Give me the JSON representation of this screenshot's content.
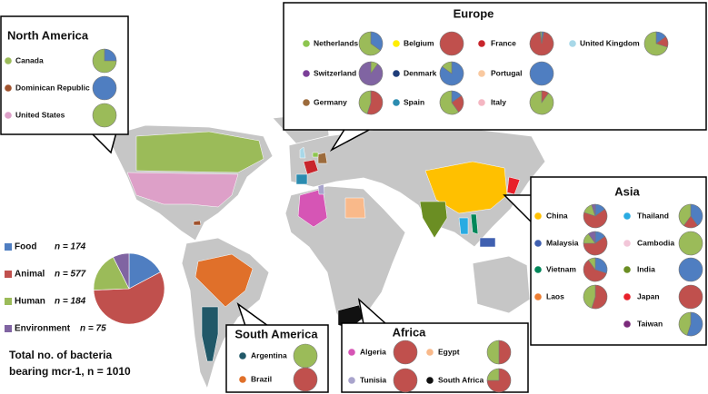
{
  "chart_data": {
    "type": "pie",
    "categories": [
      "Food",
      "Animal",
      "Human",
      "Environment"
    ],
    "values": [
      174,
      577,
      184,
      75
    ],
    "value_labels": [
      "n = 174",
      "n = 577",
      "n = 184",
      "n = 75"
    ],
    "colors": [
      "#4f7ec1",
      "#c0504d",
      "#9bbb59",
      "#8064a2"
    ],
    "total_line1": "Total no. of bacteria",
    "total_line2": "bearing mcr-1, n = 1010"
  },
  "regions": [
    {
      "name": "North America",
      "countries": [
        {
          "name": "Canada",
          "color": "#9bbb59",
          "shares": [
            25,
            0,
            75,
            0
          ]
        },
        {
          "name": "Dominican Republic",
          "color": "#a0522d",
          "shares": [
            100,
            0,
            0,
            0
          ]
        },
        {
          "name": "United States",
          "color": "#dda0c8",
          "shares": [
            0,
            0,
            100,
            0
          ]
        }
      ]
    },
    {
      "name": "Europe",
      "countries": [
        {
          "name": "Netherlands",
          "color": "#8dc54f",
          "shares": [
            35,
            0,
            65,
            0
          ]
        },
        {
          "name": "Belgium",
          "color": "#ffee00",
          "shares": [
            0,
            100,
            0,
            0
          ]
        },
        {
          "name": "France",
          "color": "#c8252c",
          "shares": [
            3,
            95,
            2,
            0
          ]
        },
        {
          "name": "United Kingdom",
          "color": "#a8d8e8",
          "shares": [
            15,
            15,
            70,
            0
          ]
        },
        {
          "name": "Switzerland",
          "color": "#7b3f98",
          "shares": [
            0,
            0,
            10,
            90
          ]
        },
        {
          "name": "Denmark",
          "color": "#1f3d7a",
          "shares": [
            85,
            0,
            15,
            0
          ]
        },
        {
          "name": "Portugal",
          "color": "#f9c9a0",
          "shares": [
            100,
            0,
            0,
            0
          ]
        },
        {
          "name": "Germany",
          "color": "#9c6b3c",
          "shares": [
            0,
            55,
            45,
            0
          ]
        },
        {
          "name": "Spain",
          "color": "#2b8cb0",
          "shares": [
            15,
            25,
            60,
            0
          ]
        },
        {
          "name": "Italy",
          "color": "#f4b6c2",
          "shares": [
            0,
            10,
            90,
            0
          ]
        }
      ]
    },
    {
      "name": "Asia",
      "countries": [
        {
          "name": "China",
          "color": "#ffc000",
          "shares": [
            15,
            65,
            15,
            5
          ]
        },
        {
          "name": "Thailand",
          "color": "#29abe2",
          "shares": [
            40,
            20,
            40,
            0
          ]
        },
        {
          "name": "Malaysia",
          "color": "#4060b0",
          "shares": [
            15,
            60,
            15,
            10
          ]
        },
        {
          "name": "Cambodia",
          "color": "#f2c6d8",
          "shares": [
            0,
            0,
            100,
            0
          ]
        },
        {
          "name": "Vietnam",
          "color": "#00875a",
          "shares": [
            30,
            60,
            10,
            0
          ]
        },
        {
          "name": "India",
          "color": "#6b8e23",
          "shares": [
            100,
            0,
            0,
            0
          ]
        },
        {
          "name": "Laos",
          "color": "#ed7d31",
          "shares": [
            0,
            55,
            45,
            0
          ]
        },
        {
          "name": "Japan",
          "color": "#e8202a",
          "shares": [
            0,
            100,
            0,
            0
          ]
        },
        {
          "name": "Taiwan",
          "color": "#7a2a7a",
          "shares": [
            55,
            0,
            45,
            0
          ]
        }
      ]
    },
    {
      "name": "South America",
      "countries": [
        {
          "name": "Argentina",
          "color": "#215868",
          "shares": [
            0,
            0,
            100,
            0
          ]
        },
        {
          "name": "Brazil",
          "color": "#e0702a",
          "shares": [
            0,
            100,
            0,
            0
          ]
        }
      ]
    },
    {
      "name": "Africa",
      "countries": [
        {
          "name": "Algeria",
          "color": "#d655b5",
          "shares": [
            0,
            100,
            0,
            0
          ]
        },
        {
          "name": "Egypt",
          "color": "#f9b98a",
          "shares": [
            0,
            50,
            50,
            0
          ]
        },
        {
          "name": "Tunisia",
          "color": "#a9a4cc",
          "shares": [
            0,
            100,
            0,
            0
          ]
        },
        {
          "name": "South Africa",
          "color": "#111111",
          "shares": [
            0,
            75,
            25,
            0
          ]
        }
      ]
    }
  ]
}
